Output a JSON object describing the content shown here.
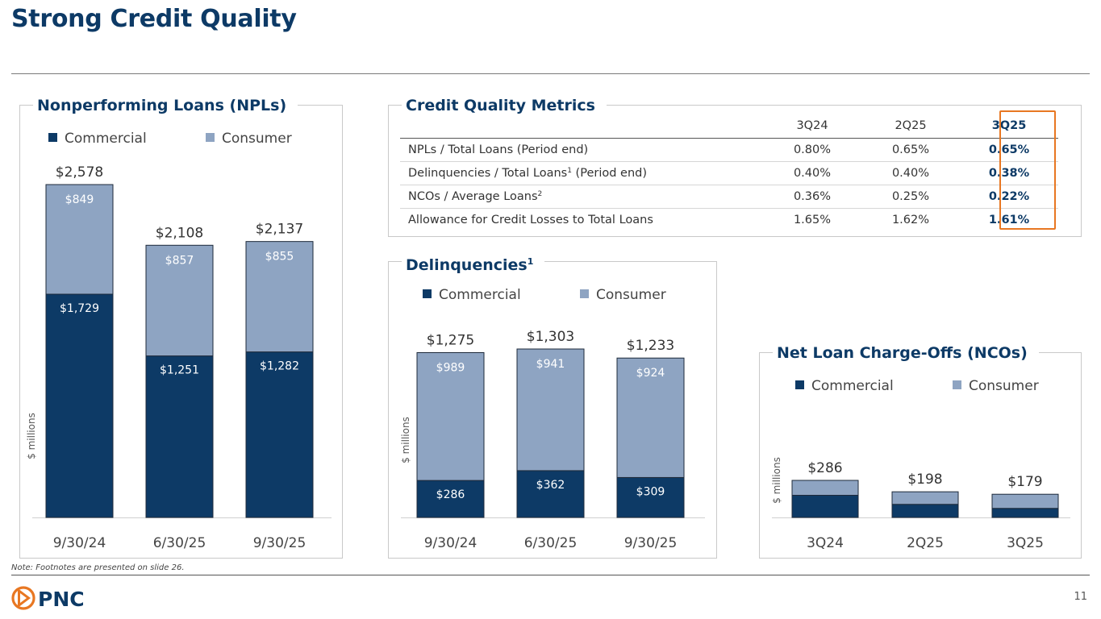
{
  "page": {
    "title": "Strong Credit Quality",
    "footnote": "Note: Footnotes are presented on slide 26.",
    "page_number": "11",
    "logo_text": "PNC"
  },
  "colors": {
    "commercial": "#0d3a66",
    "consumer": "#8ea4c2",
    "title": "#0d3a66",
    "highlight": "#e87722"
  },
  "npl_panel": {
    "title": "Nonperforming Loans (NPLs)",
    "legend": {
      "commercial": "Commercial",
      "consumer": "Consumer"
    }
  },
  "delinquencies_panel": {
    "title": "Delinquencies",
    "title_sup": "1",
    "legend": {
      "commercial": "Commercial",
      "consumer": "Consumer"
    }
  },
  "nco_panel": {
    "title": "Net Loan Charge-Offs (NCOs)",
    "legend": {
      "commercial": "Commercial",
      "consumer": "Consumer"
    }
  },
  "metrics": {
    "title": "Credit Quality Metrics",
    "columns": [
      "3Q24",
      "2Q25",
      "3Q25"
    ],
    "rows": [
      {
        "label": "NPLs / Total Loans (Period end)",
        "sup": "",
        "suffix": "",
        "values": [
          "0.80%",
          "0.65%",
          "0.65%"
        ]
      },
      {
        "label": "Delinquencies / Total Loans",
        "sup": "1",
        "suffix": " (Period end)",
        "values": [
          "0.40%",
          "0.40%",
          "0.38%"
        ]
      },
      {
        "label": "NCOs / Average Loans",
        "sup": "2",
        "suffix": "",
        "values": [
          "0.36%",
          "0.25%",
          "0.22%"
        ]
      },
      {
        "label": "Allowance for Credit Losses to Total Loans",
        "sup": "",
        "suffix": "",
        "values": [
          "1.65%",
          "1.62%",
          "1.61%"
        ]
      }
    ]
  },
  "chart_data": [
    {
      "id": "npl",
      "type": "bar",
      "stacked": true,
      "title": "Nonperforming Loans (NPLs)",
      "ylabel": "$ millions",
      "categories": [
        "9/30/24",
        "6/30/25",
        "9/30/25"
      ],
      "series": [
        {
          "name": "Commercial",
          "values": [
            1729,
            1251,
            1282
          ],
          "labels": [
            "$1,729",
            "$1,251",
            "$1,282"
          ]
        },
        {
          "name": "Consumer",
          "values": [
            849,
            857,
            855
          ],
          "labels": [
            "$849",
            "$857",
            "$855"
          ]
        }
      ],
      "totals": [
        "$2,578",
        "$2,108",
        "$2,137"
      ],
      "ylim": [
        0,
        2578
      ],
      "legend_position": "top"
    },
    {
      "id": "delinquencies",
      "type": "bar",
      "stacked": true,
      "title": "Delinquencies",
      "ylabel": "$ millions",
      "categories": [
        "9/30/24",
        "6/30/25",
        "9/30/25"
      ],
      "series": [
        {
          "name": "Commercial",
          "values": [
            286,
            362,
            309
          ],
          "labels": [
            "$286",
            "$362",
            "$309"
          ]
        },
        {
          "name": "Consumer",
          "values": [
            989,
            941,
            924
          ],
          "labels": [
            "$989",
            "$941",
            "$924"
          ]
        }
      ],
      "totals": [
        "$1,275",
        "$1,303",
        "$1,233"
      ],
      "ylim": [
        0,
        1303
      ],
      "legend_position": "top"
    },
    {
      "id": "nco",
      "type": "bar",
      "stacked": true,
      "title": "Net Loan Charge-Offs (NCOs)",
      "ylabel": "$ millions",
      "categories": [
        "3Q24",
        "2Q25",
        "3Q25"
      ],
      "series": [
        {
          "name": "Commercial",
          "values": [
            171,
            101,
            70
          ],
          "labels": [
            "",
            "",
            ""
          ]
        },
        {
          "name": "Consumer",
          "values": [
            115,
            97,
            109
          ],
          "labels": [
            "",
            "",
            ""
          ]
        }
      ],
      "totals": [
        "$286",
        "$198",
        "$179"
      ],
      "ylim": [
        0,
        286
      ],
      "legend_position": "top"
    }
  ]
}
